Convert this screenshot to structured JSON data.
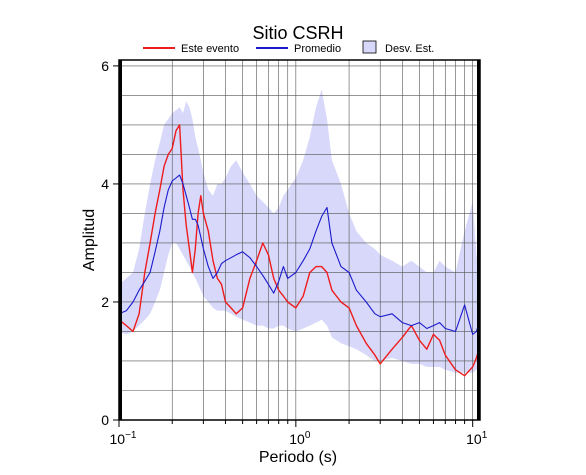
{
  "chart_data": {
    "type": "line",
    "title": "Sitio CSRH",
    "xlabel": "Periodo (s)",
    "ylabel": "Amplitud",
    "x_scale": "log",
    "xlim": [
      0.1,
      11
    ],
    "ylim": [
      0,
      6.1
    ],
    "x_tick_labels": [
      {
        "value": 0.1,
        "base": "10",
        "exp": "−1"
      },
      {
        "value": 1,
        "base": "10",
        "exp": "0"
      },
      {
        "value": 10,
        "base": "10",
        "exp": "1"
      }
    ],
    "y_ticks": [
      0,
      2,
      4,
      6
    ],
    "grid": true,
    "legend_position": "top",
    "legend": [
      {
        "label": "Este evento",
        "kind": "line",
        "color": "#ee1c1c"
      },
      {
        "label": "Promedio",
        "kind": "line",
        "color": "#1a1acc"
      },
      {
        "label": "Desv. Est.",
        "kind": "patch",
        "color": "#d8d8fa"
      }
    ],
    "x": [
      0.1,
      0.11,
      0.12,
      0.13,
      0.14,
      0.15,
      0.16,
      0.17,
      0.18,
      0.19,
      0.2,
      0.21,
      0.22,
      0.23,
      0.24,
      0.25,
      0.26,
      0.27,
      0.28,
      0.29,
      0.3,
      0.32,
      0.34,
      0.36,
      0.38,
      0.4,
      0.43,
      0.46,
      0.5,
      0.55,
      0.6,
      0.65,
      0.7,
      0.75,
      0.8,
      0.85,
      0.9,
      1.0,
      1.1,
      1.2,
      1.3,
      1.4,
      1.5,
      1.6,
      1.8,
      2.0,
      2.2,
      2.5,
      2.8,
      3.0,
      3.5,
      4.0,
      4.5,
      5.0,
      5.5,
      6.0,
      6.5,
      7.0,
      8.0,
      9.0,
      10.0,
      10.5,
      11.0
    ],
    "series": [
      {
        "name": "Este evento",
        "color": "#ee1c1c",
        "values": [
          1.7,
          1.6,
          1.5,
          1.8,
          2.5,
          3.0,
          3.5,
          3.9,
          4.3,
          4.5,
          4.6,
          4.9,
          5.0,
          3.9,
          3.3,
          2.9,
          2.5,
          2.9,
          3.5,
          3.8,
          3.5,
          3.2,
          2.7,
          2.4,
          2.3,
          2.0,
          1.9,
          1.8,
          1.9,
          2.4,
          2.7,
          3.0,
          2.8,
          2.4,
          2.2,
          2.1,
          2.0,
          1.9,
          2.1,
          2.5,
          2.6,
          2.6,
          2.5,
          2.2,
          2.0,
          1.9,
          1.6,
          1.3,
          1.1,
          0.95,
          1.2,
          1.4,
          1.6,
          1.35,
          1.2,
          1.45,
          1.35,
          1.1,
          0.85,
          0.75,
          0.9,
          1.05,
          1.25
        ]
      },
      {
        "name": "Promedio",
        "color": "#1a1acc",
        "values": [
          1.8,
          1.85,
          2.0,
          2.2,
          2.35,
          2.5,
          2.85,
          3.2,
          3.6,
          3.9,
          4.05,
          4.1,
          4.15,
          4.0,
          3.8,
          3.6,
          3.4,
          3.4,
          3.3,
          3.1,
          2.9,
          2.6,
          2.4,
          2.5,
          2.65,
          2.7,
          2.75,
          2.8,
          2.85,
          2.75,
          2.6,
          2.45,
          2.3,
          2.15,
          2.35,
          2.6,
          2.4,
          2.5,
          2.7,
          2.9,
          3.2,
          3.45,
          3.6,
          3.0,
          2.6,
          2.5,
          2.2,
          2.0,
          1.8,
          1.75,
          1.8,
          1.65,
          1.6,
          1.65,
          1.55,
          1.6,
          1.65,
          1.55,
          1.5,
          1.95,
          1.45,
          1.5,
          1.7
        ]
      }
    ],
    "std_band": {
      "name": "Desv. Est.",
      "upper": [
        2.3,
        2.4,
        2.5,
        2.9,
        3.5,
        4.0,
        4.4,
        4.7,
        5.0,
        5.1,
        5.2,
        5.25,
        5.3,
        5.2,
        5.4,
        5.3,
        5.1,
        4.8,
        4.6,
        4.4,
        4.2,
        3.9,
        3.8,
        4.0,
        4.0,
        4.1,
        4.3,
        4.4,
        4.2,
        4.0,
        3.8,
        3.7,
        3.6,
        3.5,
        3.6,
        3.8,
        3.9,
        4.1,
        4.4,
        4.8,
        5.3,
        5.6,
        5.1,
        4.4,
        4.0,
        3.5,
        3.2,
        3.0,
        2.9,
        2.8,
        2.7,
        2.6,
        2.7,
        2.6,
        2.5,
        2.5,
        2.7,
        2.6,
        2.5,
        3.2,
        3.7,
        2.8,
        2.4
      ],
      "lower": [
        1.5,
        1.45,
        1.5,
        1.6,
        1.7,
        1.8,
        2.0,
        2.2,
        2.5,
        2.8,
        3.0,
        3.0,
        2.9,
        2.8,
        2.7,
        2.6,
        2.5,
        2.4,
        2.3,
        2.2,
        2.1,
        2.0,
        1.9,
        1.85,
        1.85,
        1.85,
        1.8,
        1.75,
        1.7,
        1.65,
        1.6,
        1.6,
        1.55,
        1.55,
        1.6,
        1.6,
        1.55,
        1.5,
        1.55,
        1.6,
        1.65,
        1.7,
        1.6,
        1.4,
        1.3,
        1.25,
        1.2,
        1.1,
        1.0,
        1.0,
        1.05,
        1.0,
        0.95,
        0.95,
        0.9,
        0.9,
        0.9,
        0.85,
        0.8,
        0.8,
        0.8,
        0.85,
        0.9
      ]
    }
  }
}
